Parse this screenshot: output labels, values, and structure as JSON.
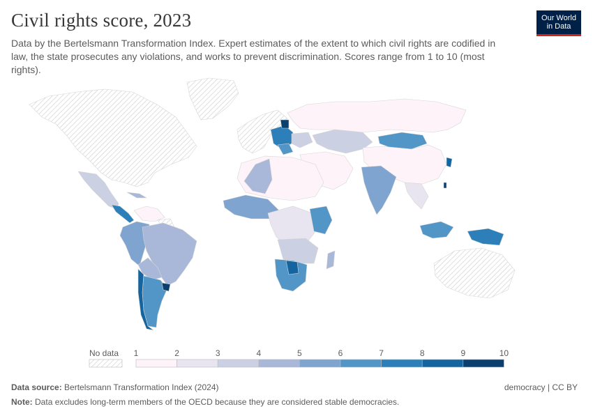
{
  "title": "Civil rights score, 2023",
  "subtitle": "Data by the Bertelsmann Transformation Index. Expert estimates of the extent to which civil rights are codified in law, the state prosecutes any violations, and works to prevent discrimination. Scores range from 1 to 10 (most rights).",
  "logo": {
    "line1": "Our World",
    "line2": "in Data",
    "bg": "#002147",
    "accent": "#ce261e"
  },
  "legend": {
    "no_data_label": "No data",
    "ticks": [
      "1",
      "2",
      "3",
      "4",
      "5",
      "6",
      "7",
      "8",
      "9",
      "10"
    ],
    "colors": [
      "#fdf3f8",
      "#e8e5f1",
      "#ccd0e3",
      "#a9b8d8",
      "#7ea4cf",
      "#5295c7",
      "#2c7fb8",
      "#1464a0",
      "#0a3f6e"
    ]
  },
  "source": {
    "label": "Data source:",
    "text": "Bertelsmann Transformation Index (2024)"
  },
  "license": "democracy | CC BY",
  "note": {
    "label": "Note:",
    "text": "Data excludes long-term members of the OECD because they are considered stable democracies."
  },
  "regions": [
    {
      "name": "North America",
      "status": "no data"
    },
    {
      "name": "Greenland",
      "status": "no data"
    },
    {
      "name": "Mexico",
      "score": 3
    },
    {
      "name": "Brazil",
      "score": 4
    },
    {
      "name": "Argentina",
      "score": 6
    },
    {
      "name": "Chile",
      "score": 8
    },
    {
      "name": "Uruguay",
      "score": 10
    },
    {
      "name": "Venezuela",
      "score": 1
    },
    {
      "name": "Russia",
      "score": 1
    },
    {
      "name": "China",
      "score": 1
    },
    {
      "name": "Mongolia",
      "score": 6
    },
    {
      "name": "Kazakhstan",
      "score": 3
    },
    {
      "name": "India",
      "score": 5
    },
    {
      "name": "Indonesia",
      "score": 6
    },
    {
      "name": "Australia",
      "status": "no data"
    },
    {
      "name": "South Africa",
      "score": 6
    },
    {
      "name": "Taiwan",
      "score": 9
    },
    {
      "name": "Estonia",
      "score": 9
    }
  ]
}
